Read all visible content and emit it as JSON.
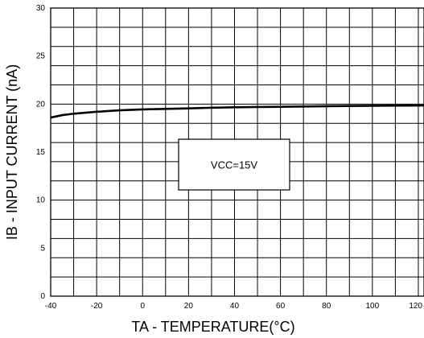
{
  "chart_data": {
    "type": "line",
    "title": "",
    "xlabel": "TA - TEMPERATURE(°C)",
    "ylabel": "IB - INPUT CURRENT (nA)",
    "xlim": [
      -40,
      130
    ],
    "ylim": [
      0,
      30
    ],
    "x_ticks": [
      -40,
      -20,
      0,
      20,
      40,
      60,
      80,
      100,
      120
    ],
    "x_tick_labels": [
      "-40",
      "-20",
      "0",
      "20",
      "40",
      "60",
      "80",
      "100",
      "120"
    ],
    "y_ticks": [
      0,
      5,
      10,
      15,
      20,
      25,
      30
    ],
    "y_tick_labels": [
      "0",
      "5",
      "10",
      "15",
      "20",
      "25",
      "30"
    ],
    "grid": true,
    "annotations": [
      {
        "text": "VCC=15V"
      }
    ],
    "series": [
      {
        "color": "#000000",
        "x": [
          -40,
          -35,
          -30,
          -20,
          -10,
          0,
          10,
          20,
          30,
          40,
          50,
          60,
          70,
          80,
          90,
          100,
          110,
          120,
          130
        ],
        "y": [
          18.6,
          18.85,
          19.0,
          19.2,
          19.35,
          19.45,
          19.5,
          19.55,
          19.62,
          19.67,
          19.7,
          19.72,
          19.75,
          19.78,
          19.8,
          19.82,
          19.84,
          19.85,
          19.87
        ]
      }
    ]
  }
}
